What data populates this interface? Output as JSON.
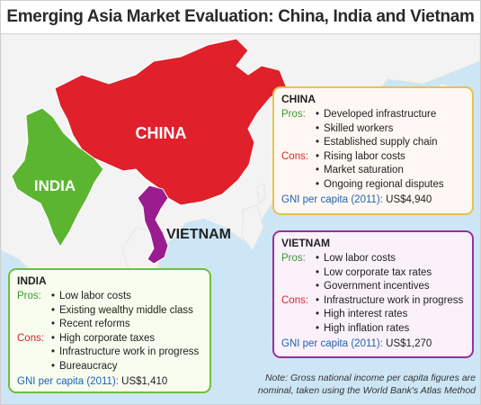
{
  "title": "Emerging Asia Market Evaluation: China, India and Vietnam",
  "colors": {
    "sea": "#cde6f5",
    "land": "#f3f3f3",
    "china": "#e0202a",
    "india": "#5cb531",
    "vietnam": "#9b1c8e",
    "pros": "#3a9a2f",
    "cons": "#d6262c",
    "gni": "#1f62b0"
  },
  "map_labels": {
    "china": "CHINA",
    "india": "INDIA",
    "vietnam": "VIETNAM"
  },
  "china": {
    "header": "CHINA",
    "pros_label": "Pros:",
    "pros": [
      "Developed infrastructure",
      "Skilled workers",
      "Established supply chain"
    ],
    "cons_label": "Cons:",
    "cons": [
      "Rising labor costs",
      "Market saturation",
      "Ongoing regional disputes"
    ],
    "gni_label": "GNI per capita (2011):",
    "gni_value": "US$4,940"
  },
  "vietnam": {
    "header": "VIETNAM",
    "pros_label": "Pros:",
    "pros": [
      "Low labor costs",
      "Low corporate tax rates",
      "Government incentives"
    ],
    "cons_label": "Cons:",
    "cons": [
      "Infrastructure work in progress",
      "High interest rates",
      "High inflation rates"
    ],
    "gni_label": "GNI per capita (2011):",
    "gni_value": "US$1,270"
  },
  "india": {
    "header": "INDIA",
    "pros_label": "Pros:",
    "pros": [
      "Low labor costs",
      "Existing wealthy middle class",
      "Recent reforms"
    ],
    "cons_label": "Cons:",
    "cons": [
      "High corporate taxes",
      "Infrastructure work in progress",
      "Bureaucracy"
    ],
    "gni_label": "GNI per capita (2011):",
    "gni_value": "US$1,410"
  },
  "note": "Note: Gross national income per capita figures are nominal, taken using the World Bank's Atlas Method"
}
